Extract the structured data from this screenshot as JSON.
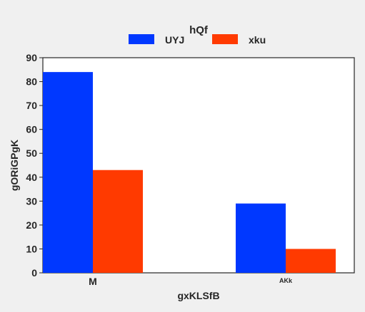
{
  "chart_data": {
    "type": "bar",
    "title": "hQf",
    "xlabel": "gxKLSfB",
    "ylabel": "gORiGPgK",
    "categories": [
      "M",
      "AKk"
    ],
    "series": [
      {
        "name": "UYJ",
        "values": [
          84,
          29
        ],
        "color": "#0038ff"
      },
      {
        "name": "xku",
        "values": [
          43,
          10
        ],
        "color": "#ff3a00"
      }
    ],
    "ylim": [
      0,
      90
    ],
    "yticks": [
      "0",
      "10",
      "20",
      "30",
      "40",
      "50",
      "60",
      "70",
      "80",
      "90"
    ],
    "grid": false,
    "legend_position": "top-center"
  }
}
